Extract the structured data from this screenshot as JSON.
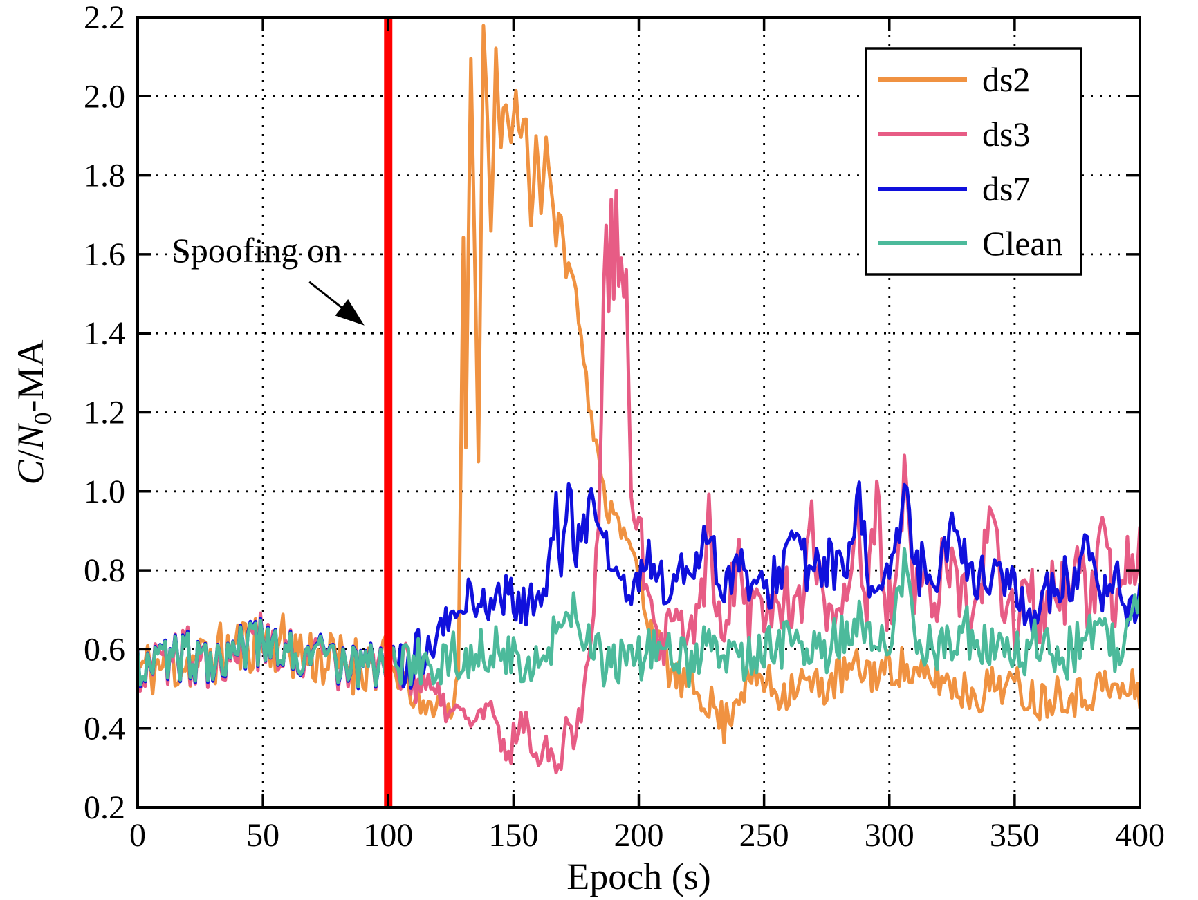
{
  "figure": {
    "background": "#FFFFFF"
  },
  "chart_data": {
    "type": "line",
    "title": "",
    "xlabel": "Epoch (s)",
    "ylabel": "C/N0-MA",
    "ylabel_parts": [
      {
        "t": "C",
        "style": "italic"
      },
      {
        "t": "/",
        "style": "normal"
      },
      {
        "t": "N",
        "style": "italic"
      },
      {
        "t": "0",
        "style": "sub"
      },
      {
        "t": "-MA",
        "style": "normal"
      }
    ],
    "xlim": [
      0,
      400
    ],
    "ylim": [
      0.2,
      2.2
    ],
    "xtick_labels": [
      "0",
      "50",
      "100",
      "150",
      "200",
      "250",
      "300",
      "350",
      "400"
    ],
    "ytick_labels": [
      "0.2",
      "0.4",
      "0.6",
      "0.8",
      "1.0",
      "1.2",
      "1.4",
      "1.6",
      "1.8",
      "2.0",
      "2.2"
    ],
    "grid": "dotted",
    "grid_color": "#000000",
    "axis_color": "#000000",
    "legend": {
      "position": "top-right",
      "entries": [
        {
          "label": "ds2",
          "color": "#F09241"
        },
        {
          "label": "ds3",
          "color": "#E75C85"
        },
        {
          "label": "ds7",
          "color": "#1010DC"
        },
        {
          "label": "Clean",
          "color": "#4CBA9B"
        }
      ]
    },
    "event_line": {
      "x": 100,
      "color": "#FF0000"
    },
    "annotation": {
      "text": "Spoofing on",
      "text_pos": [
        47.5,
        1.61
      ],
      "arrow_tail": [
        68.5,
        1.53
      ],
      "arrow_head": [
        90.5,
        1.42
      ]
    },
    "series": [
      {
        "name": "ds2",
        "color": "#F09241",
        "seed": 11,
        "shared_until": -1,
        "baseline_jitter": 0,
        "keypoints": [
          [
            0,
            0.55
          ],
          [
            25,
            0.57
          ],
          [
            50,
            0.63
          ],
          [
            75,
            0.57
          ],
          [
            100,
            0.56
          ],
          [
            108,
            0.5
          ],
          [
            114,
            0.44
          ],
          [
            120,
            0.47
          ],
          [
            125,
            0.44
          ],
          [
            128,
            0.55
          ],
          [
            129,
            1.1
          ],
          [
            130,
            1.62
          ],
          [
            131,
            1.08
          ],
          [
            133,
            2.13
          ],
          [
            134,
            1.78
          ],
          [
            136,
            1.07
          ],
          [
            138,
            2.17
          ],
          [
            139,
            2.08
          ],
          [
            141,
            1.66
          ],
          [
            143,
            2.1
          ],
          [
            145,
            1.9
          ],
          [
            147,
            1.97
          ],
          [
            149,
            1.86
          ],
          [
            151,
            1.98
          ],
          [
            153,
            1.92
          ],
          [
            155,
            1.95
          ],
          [
            157,
            1.67
          ],
          [
            159,
            1.93
          ],
          [
            161,
            1.72
          ],
          [
            163,
            1.88
          ],
          [
            165,
            1.78
          ],
          [
            167,
            1.63
          ],
          [
            169,
            1.71
          ],
          [
            171,
            1.56
          ],
          [
            173,
            1.57
          ],
          [
            175,
            1.5
          ],
          [
            177,
            1.42
          ],
          [
            179,
            1.28
          ],
          [
            181,
            1.18
          ],
          [
            183,
            1.12
          ],
          [
            185,
            1.02
          ],
          [
            188,
            0.95
          ],
          [
            191,
            0.97
          ],
          [
            194,
            0.88
          ],
          [
            197,
            0.85
          ],
          [
            200,
            0.78
          ],
          [
            204,
            0.68
          ],
          [
            208,
            0.6
          ],
          [
            212,
            0.55
          ],
          [
            216,
            0.52
          ],
          [
            222,
            0.5
          ],
          [
            228,
            0.47
          ],
          [
            234,
            0.41
          ],
          [
            240,
            0.5
          ],
          [
            248,
            0.53
          ],
          [
            256,
            0.49
          ],
          [
            264,
            0.52
          ],
          [
            272,
            0.5
          ],
          [
            280,
            0.53
          ],
          [
            288,
            0.55
          ],
          [
            296,
            0.54
          ],
          [
            304,
            0.56
          ],
          [
            312,
            0.52
          ],
          [
            320,
            0.53
          ],
          [
            328,
            0.5
          ],
          [
            336,
            0.49
          ],
          [
            344,
            0.52
          ],
          [
            352,
            0.5
          ],
          [
            360,
            0.47
          ],
          [
            368,
            0.5
          ],
          [
            376,
            0.48
          ],
          [
            384,
            0.51
          ],
          [
            392,
            0.49
          ],
          [
            400,
            0.5
          ]
        ],
        "noise": [
          [
            0,
            100,
            0.08
          ],
          [
            100,
            128,
            0.035
          ],
          [
            128,
            199,
            0.035
          ],
          [
            199,
            230,
            0.05
          ],
          [
            230,
            401,
            0.055
          ]
        ]
      },
      {
        "name": "ds3",
        "color": "#E75C85",
        "seed": 22,
        "shared_until": 110,
        "baseline_jitter": 0.02,
        "keypoints": [
          [
            0,
            0.57
          ],
          [
            25,
            0.58
          ],
          [
            50,
            0.61
          ],
          [
            75,
            0.57
          ],
          [
            100,
            0.56
          ],
          [
            108,
            0.55
          ],
          [
            114,
            0.52
          ],
          [
            118,
            0.48
          ],
          [
            124,
            0.45
          ],
          [
            130,
            0.43
          ],
          [
            136,
            0.42
          ],
          [
            140,
            0.46
          ],
          [
            144,
            0.37
          ],
          [
            148,
            0.33
          ],
          [
            152,
            0.42
          ],
          [
            156,
            0.39
          ],
          [
            160,
            0.34
          ],
          [
            164,
            0.36
          ],
          [
            168,
            0.3
          ],
          [
            171,
            0.42
          ],
          [
            174,
            0.38
          ],
          [
            177,
            0.46
          ],
          [
            180,
            0.6
          ],
          [
            182,
            0.72
          ],
          [
            184,
            0.93
          ],
          [
            185,
            1.2
          ],
          [
            186,
            1.5
          ],
          [
            187,
            1.66
          ],
          [
            188,
            1.46
          ],
          [
            189,
            1.71
          ],
          [
            190,
            1.52
          ],
          [
            191,
            1.73
          ],
          [
            192,
            1.56
          ],
          [
            193,
            1.62
          ],
          [
            194,
            1.46
          ],
          [
            195,
            1.53
          ],
          [
            196,
            1.22
          ],
          [
            197,
            1.02
          ],
          [
            199,
            0.98
          ],
          [
            201,
            0.86
          ],
          [
            203,
            0.72
          ],
          [
            206,
            0.63
          ],
          [
            210,
            0.6
          ],
          [
            215,
            0.66
          ],
          [
            220,
            0.63
          ],
          [
            225,
            0.71
          ],
          [
            228,
            0.93
          ],
          [
            231,
            0.66
          ],
          [
            235,
            0.7
          ],
          [
            240,
            0.86
          ],
          [
            244,
            0.69
          ],
          [
            249,
            0.73
          ],
          [
            254,
            0.68
          ],
          [
            259,
            0.76
          ],
          [
            264,
            0.7
          ],
          [
            269,
            0.9
          ],
          [
            273,
            0.72
          ],
          [
            278,
            0.7
          ],
          [
            283,
            0.76
          ],
          [
            287,
            0.95
          ],
          [
            291,
            0.7
          ],
          [
            295,
            0.96
          ],
          [
            299,
            0.71
          ],
          [
            303,
            0.76
          ],
          [
            306,
            1.02
          ],
          [
            310,
            0.72
          ],
          [
            314,
            0.79
          ],
          [
            318,
            0.7
          ],
          [
            322,
            0.86
          ],
          [
            326,
            0.76
          ],
          [
            330,
            0.72
          ],
          [
            335,
            0.7
          ],
          [
            341,
            0.94
          ],
          [
            345,
            0.73
          ],
          [
            350,
            0.68
          ],
          [
            355,
            0.76
          ],
          [
            360,
            0.66
          ],
          [
            365,
            0.79
          ],
          [
            370,
            0.73
          ],
          [
            375,
            0.81
          ],
          [
            380,
            0.69
          ],
          [
            385,
            0.86
          ],
          [
            390,
            0.71
          ],
          [
            395,
            0.83
          ],
          [
            400,
            0.85
          ]
        ],
        "noise": [
          [
            0,
            116,
            0.07
          ],
          [
            116,
            180,
            0.045
          ],
          [
            180,
            198,
            0.04
          ],
          [
            198,
            401,
            0.085
          ]
        ]
      },
      {
        "name": "ds7",
        "color": "#1010DC",
        "seed": 33,
        "shared_until": 104,
        "baseline_jitter": 0,
        "keypoints": [
          [
            0,
            0.57
          ],
          [
            25,
            0.58
          ],
          [
            50,
            0.61
          ],
          [
            75,
            0.57
          ],
          [
            100,
            0.56
          ],
          [
            110,
            0.57
          ],
          [
            116,
            0.6
          ],
          [
            122,
            0.65
          ],
          [
            128,
            0.7
          ],
          [
            133,
            0.74
          ],
          [
            138,
            0.71
          ],
          [
            143,
            0.73
          ],
          [
            148,
            0.74
          ],
          [
            153,
            0.7
          ],
          [
            158,
            0.73
          ],
          [
            163,
            0.75
          ],
          [
            167,
            0.95
          ],
          [
            169,
            0.82
          ],
          [
            172,
            1.0
          ],
          [
            175,
            0.85
          ],
          [
            177,
            0.9
          ],
          [
            179,
            0.92
          ],
          [
            181,
            1.02
          ],
          [
            184,
            0.88
          ],
          [
            186,
            0.92
          ],
          [
            189,
            0.8
          ],
          [
            192,
            0.78
          ],
          [
            196,
            0.74
          ],
          [
            200,
            0.76
          ],
          [
            204,
            0.85
          ],
          [
            208,
            0.78
          ],
          [
            212,
            0.74
          ],
          [
            216,
            0.78
          ],
          [
            220,
            0.8
          ],
          [
            224,
            0.84
          ],
          [
            228,
            0.92
          ],
          [
            232,
            0.76
          ],
          [
            236,
            0.79
          ],
          [
            240,
            0.81
          ],
          [
            245,
            0.76
          ],
          [
            250,
            0.73
          ],
          [
            255,
            0.79
          ],
          [
            260,
            0.86
          ],
          [
            264,
            0.89
          ],
          [
            268,
            0.76
          ],
          [
            272,
            0.81
          ],
          [
            276,
            0.83
          ],
          [
            280,
            0.79
          ],
          [
            284,
            0.81
          ],
          [
            288,
            0.97
          ],
          [
            292,
            0.76
          ],
          [
            296,
            0.79
          ],
          [
            300,
            0.81
          ],
          [
            304,
            0.86
          ],
          [
            307,
            1.0
          ],
          [
            311,
            0.79
          ],
          [
            315,
            0.83
          ],
          [
            319,
            0.79
          ],
          [
            323,
            0.86
          ],
          [
            327,
            0.93
          ],
          [
            331,
            0.81
          ],
          [
            335,
            0.79
          ],
          [
            339,
            0.76
          ],
          [
            343,
            0.81
          ],
          [
            347,
            0.79
          ],
          [
            351,
            0.73
          ],
          [
            355,
            0.66
          ],
          [
            359,
            0.73
          ],
          [
            363,
            0.76
          ],
          [
            367,
            0.71
          ],
          [
            371,
            0.79
          ],
          [
            375,
            0.73
          ],
          [
            379,
            0.86
          ],
          [
            383,
            0.76
          ],
          [
            387,
            0.71
          ],
          [
            391,
            0.79
          ],
          [
            395,
            0.69
          ],
          [
            400,
            0.72
          ]
        ],
        "noise": [
          [
            0,
            116,
            0.07
          ],
          [
            116,
            200,
            0.05
          ],
          [
            200,
            401,
            0.065
          ]
        ]
      },
      {
        "name": "Clean",
        "color": "#4CBA9B",
        "seed": 44,
        "shared_until": 401,
        "baseline_jitter": 0,
        "keypoints": [
          [
            0,
            0.57
          ],
          [
            25,
            0.58
          ],
          [
            50,
            0.61
          ],
          [
            75,
            0.57
          ],
          [
            100,
            0.56
          ],
          [
            120,
            0.57
          ],
          [
            140,
            0.6
          ],
          [
            155,
            0.58
          ],
          [
            165,
            0.6
          ],
          [
            172,
            0.73
          ],
          [
            176,
            0.66
          ],
          [
            182,
            0.58
          ],
          [
            190,
            0.56
          ],
          [
            200,
            0.58
          ],
          [
            210,
            0.6
          ],
          [
            220,
            0.57
          ],
          [
            230,
            0.62
          ],
          [
            240,
            0.58
          ],
          [
            250,
            0.6
          ],
          [
            260,
            0.62
          ],
          [
            270,
            0.58
          ],
          [
            280,
            0.63
          ],
          [
            288,
            0.7
          ],
          [
            294,
            0.62
          ],
          [
            300,
            0.6
          ],
          [
            306,
            0.82
          ],
          [
            311,
            0.62
          ],
          [
            320,
            0.6
          ],
          [
            330,
            0.65
          ],
          [
            340,
            0.6
          ],
          [
            350,
            0.58
          ],
          [
            360,
            0.62
          ],
          [
            370,
            0.58
          ],
          [
            380,
            0.65
          ],
          [
            390,
            0.6
          ],
          [
            400,
            0.7
          ]
        ],
        "noise": [
          [
            0,
            401,
            0.065
          ]
        ]
      }
    ]
  }
}
